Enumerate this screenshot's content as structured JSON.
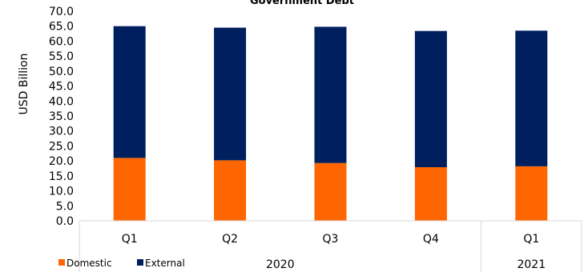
{
  "chart_data": {
    "type": "bar",
    "stacked": true,
    "title": "Government Debt",
    "ylabel": "USD Billion",
    "ylim": [
      0,
      70
    ],
    "ytick_step": 5,
    "categories": [
      "Q1",
      "Q2",
      "Q3",
      "Q4",
      "Q1"
    ],
    "groups": [
      {
        "label": "2020",
        "count": 4
      },
      {
        "label": "2021",
        "count": 1
      }
    ],
    "series": [
      {
        "name": "Domestic",
        "color": "#FF6600",
        "values": [
          21.0,
          20.2,
          19.3,
          17.9,
          18.2
        ]
      },
      {
        "name": "External",
        "color": "#001F5F",
        "values": [
          44.0,
          44.3,
          45.5,
          45.5,
          45.3
        ]
      }
    ],
    "legend_position": "bottom-left",
    "grid": false
  }
}
